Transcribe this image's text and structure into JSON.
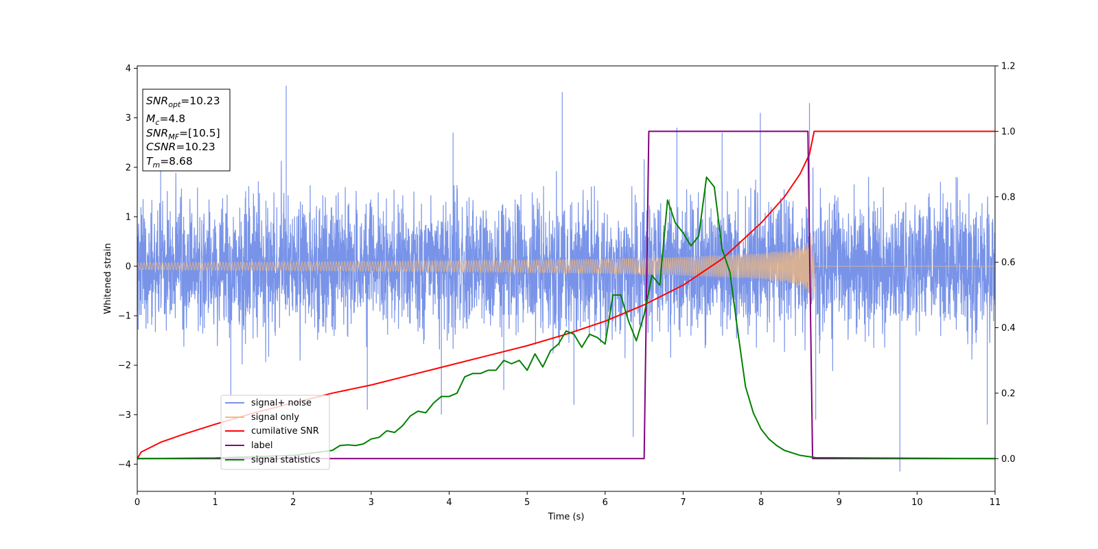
{
  "chart_data": {
    "type": "line",
    "xlabel": "Time (s)",
    "ylabel": "Whitened strain",
    "xlim": [
      0,
      11
    ],
    "ylim": [
      -4.55,
      4.05
    ],
    "y2lim": [
      -0.1,
      1.2
    ],
    "x_ticks": [
      "0",
      "1",
      "2",
      "3",
      "4",
      "5",
      "6",
      "7",
      "8",
      "9",
      "10",
      "11"
    ],
    "y_ticks": [
      "−4",
      "−3",
      "−2",
      "−1",
      "0",
      "1",
      "2",
      "3",
      "4"
    ],
    "y2_ticks": [
      "0.0",
      "0.2",
      "0.4",
      "0.6",
      "0.8",
      "1.0",
      "1.2"
    ],
    "grid": false,
    "legend_position": "lower-left",
    "colors": {
      "signal_noise": "#7893e8",
      "signal_only": "#f5b97a",
      "cumulative_snr": "#ff0000",
      "label": "#800080",
      "signal_statistics": "#008000"
    },
    "info_box": {
      "snr_opt": {
        "main": "SNR",
        "sub": "opt",
        "value": "=10.23"
      },
      "mc": {
        "main": "M",
        "sub": "c",
        "value": "=4.8"
      },
      "snr_mf": {
        "main": "SNR",
        "sub": "MF",
        "value": "=[10.5]"
      },
      "csnr": {
        "main": "CSNR",
        "sub": "",
        "value": "=10.23"
      },
      "tm": {
        "main": "T",
        "sub": "m",
        "value": "=8.68"
      }
    },
    "series": [
      {
        "name": "signal+ noise",
        "axis": "left",
        "style": "noise",
        "noise_sigma": 0.85,
        "x_range": [
          0,
          11
        ],
        "spikes": [
          {
            "x": 1.91,
            "y": 3.65
          },
          {
            "x": 5.45,
            "y": 3.52
          },
          {
            "x": 6.36,
            "y": -3.45
          },
          {
            "x": 9.78,
            "y": -4.15
          },
          {
            "x": 8.62,
            "y": 3.3
          },
          {
            "x": 7.99,
            "y": 3.1
          },
          {
            "x": 6.92,
            "y": 2.8
          },
          {
            "x": 0.3,
            "y": 2.8
          },
          {
            "x": 11.0,
            "y": 2.5
          },
          {
            "x": 2.95,
            "y": -2.9
          },
          {
            "x": 3.9,
            "y": -3.0
          },
          {
            "x": 10.9,
            "y": -3.2
          },
          {
            "x": 4.7,
            "y": -2.5
          },
          {
            "x": 5.6,
            "y": -2.8
          },
          {
            "x": 8.7,
            "y": -3.1
          },
          {
            "x": 7.5,
            "y": 2.7
          },
          {
            "x": 4.05,
            "y": 2.7
          },
          {
            "x": 1.2,
            "y": -2.6
          }
        ]
      },
      {
        "name": "signal only",
        "axis": "left",
        "style": "chirp",
        "x_range": [
          0,
          8.68
        ],
        "envelope": [
          [
            0,
            0.07
          ],
          [
            2,
            0.09
          ],
          [
            4,
            0.11
          ],
          [
            6,
            0.15
          ],
          [
            7,
            0.19
          ],
          [
            8,
            0.26
          ],
          [
            8.4,
            0.34
          ],
          [
            8.6,
            0.5
          ],
          [
            8.68,
            0.78
          ]
        ]
      },
      {
        "name": "cumilative SNR",
        "axis": "right",
        "x": [
          0,
          0.05,
          0.3,
          0.6,
          1,
          1.5,
          2,
          2.5,
          3,
          3.5,
          4,
          4.5,
          5,
          5.5,
          6,
          6.5,
          7,
          7.5,
          8,
          8.3,
          8.5,
          8.62,
          8.68,
          9,
          10,
          11
        ],
        "y": [
          0.0,
          0.02,
          0.05,
          0.075,
          0.105,
          0.14,
          0.17,
          0.2,
          0.225,
          0.255,
          0.285,
          0.315,
          0.345,
          0.38,
          0.42,
          0.47,
          0.53,
          0.61,
          0.72,
          0.8,
          0.87,
          0.93,
          1.0,
          1.0,
          1.0,
          1.0
        ]
      },
      {
        "name": "label",
        "axis": "right",
        "x": [
          0,
          6.5,
          6.56,
          8.6,
          8.66,
          11
        ],
        "y": [
          0,
          0,
          1,
          1,
          0,
          0
        ]
      },
      {
        "name": "signal statistics",
        "axis": "right",
        "x": [
          0,
          1,
          2,
          2.5,
          2.6,
          2.7,
          2.8,
          2.9,
          3.0,
          3.1,
          3.2,
          3.3,
          3.4,
          3.5,
          3.6,
          3.7,
          3.8,
          3.9,
          4.0,
          4.1,
          4.2,
          4.3,
          4.4,
          4.5,
          4.6,
          4.7,
          4.8,
          4.9,
          5.0,
          5.1,
          5.2,
          5.3,
          5.4,
          5.5,
          5.6,
          5.7,
          5.8,
          5.9,
          6.0,
          6.1,
          6.2,
          6.3,
          6.4,
          6.5,
          6.6,
          6.7,
          6.8,
          6.9,
          7.0,
          7.1,
          7.2,
          7.3,
          7.4,
          7.5,
          7.6,
          7.7,
          7.8,
          7.9,
          8.0,
          8.1,
          8.2,
          8.3,
          8.5,
          8.7,
          11
        ],
        "y": [
          0,
          0.002,
          0.01,
          0.025,
          0.04,
          0.042,
          0.04,
          0.045,
          0.06,
          0.065,
          0.085,
          0.08,
          0.1,
          0.13,
          0.145,
          0.14,
          0.17,
          0.19,
          0.19,
          0.2,
          0.25,
          0.26,
          0.26,
          0.27,
          0.27,
          0.3,
          0.29,
          0.3,
          0.27,
          0.32,
          0.28,
          0.33,
          0.35,
          0.39,
          0.38,
          0.34,
          0.38,
          0.37,
          0.35,
          0.5,
          0.5,
          0.42,
          0.36,
          0.44,
          0.56,
          0.53,
          0.79,
          0.72,
          0.69,
          0.65,
          0.68,
          0.86,
          0.83,
          0.64,
          0.57,
          0.39,
          0.22,
          0.14,
          0.09,
          0.06,
          0.04,
          0.025,
          0.01,
          0.003,
          0
        ]
      }
    ]
  }
}
